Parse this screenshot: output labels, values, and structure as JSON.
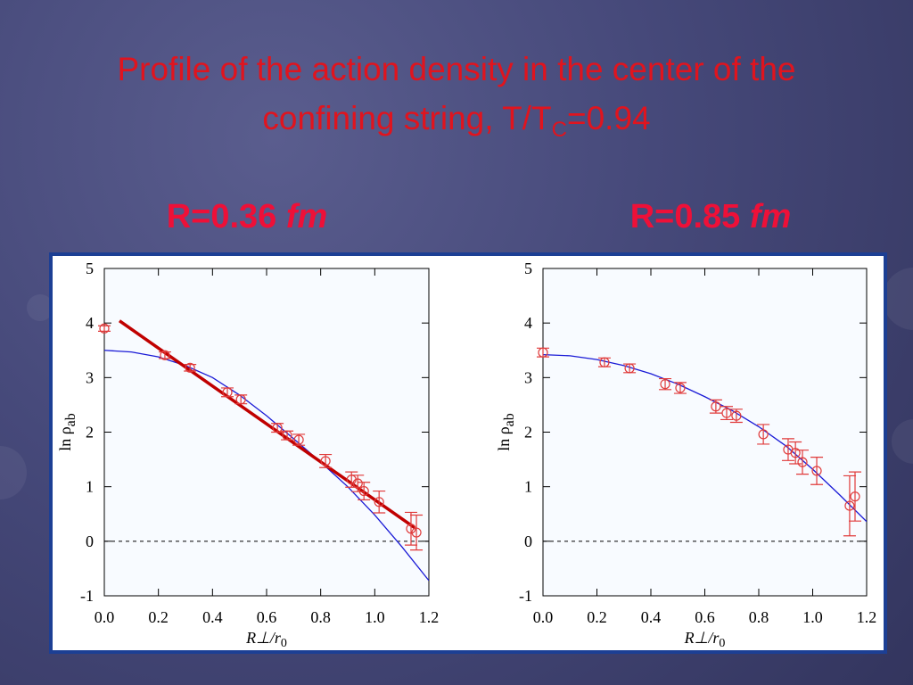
{
  "title": "Profile of the action density in the center of the confining string, T/T",
  "title_subscript": "C",
  "title_end": "=0.94",
  "chart_data": [
    {
      "type": "scatter",
      "title": "R=0.36",
      "title_unit": "fm",
      "xlabel": "R⊥/r",
      "xlabel_sub": "0",
      "ylabel": "ln ρ",
      "ylabel_sub": "ab",
      "xlim": [
        0,
        1.2
      ],
      "ylim": [
        -1,
        5
      ],
      "xticks": [
        {
          "value": 0,
          "label": "0.0"
        },
        0.2,
        0.4,
        0.6,
        0.8,
        {
          "value": 1,
          "label": "1.0"
        },
        1.2
      ],
      "yticks": [
        -1,
        0,
        1,
        2,
        3,
        4,
        5
      ],
      "series": [
        {
          "type": "scatter",
          "color": "#e03a3a",
          "x": [
            0,
            0.224,
            0.317,
            0.455,
            0.505,
            0.64,
            0.676,
            0.719,
            0.818,
            0.914,
            0.937,
            0.96,
            1.016,
            1.134,
            1.154
          ],
          "values": [
            3.9,
            3.41,
            3.18,
            2.73,
            2.6,
            2.08,
            1.94,
            1.86,
            1.47,
            1.13,
            1.06,
            0.92,
            0.72,
            0.23,
            0.16
          ],
          "errors": [
            0.05,
            0.06,
            0.06,
            0.08,
            0.08,
            0.08,
            0.08,
            0.1,
            0.12,
            0.14,
            0.15,
            0.16,
            0.2,
            0.3,
            0.32
          ]
        },
        {
          "type": "line",
          "color": "#1a1ad6",
          "width": 1.3,
          "x": [
            0,
            0.1,
            0.2,
            0.3,
            0.4,
            0.5,
            0.6,
            0.7,
            0.8,
            0.9,
            1.0,
            1.1,
            1.2
          ],
          "values": [
            3.5,
            3.47,
            3.38,
            3.22,
            3.0,
            2.68,
            2.3,
            1.88,
            1.45,
            1.0,
            0.48,
            -0.1,
            -0.72
          ]
        },
        {
          "type": "line",
          "color": "#c00000",
          "width": 3.5,
          "x": [
            0.056,
            1.147
          ],
          "values": [
            4.04,
            0.25
          ]
        }
      ]
    },
    {
      "type": "scatter",
      "title": "R=0.85",
      "title_unit": "fm",
      "xlabel": "R⊥/r",
      "xlabel_sub": "0",
      "ylabel": "ln ρ",
      "ylabel_sub": "ab",
      "xlim": [
        0,
        1.2
      ],
      "ylim": [
        -1,
        5
      ],
      "xticks": [
        {
          "value": 0,
          "label": "0.0"
        },
        0.2,
        0.4,
        0.6,
        0.8,
        {
          "value": 1,
          "label": "1.0"
        },
        1.2
      ],
      "yticks": [
        -1,
        0,
        1,
        2,
        3,
        4,
        5
      ],
      "series": [
        {
          "type": "scatter",
          "color": "#e03a3a",
          "x": [
            0,
            0.228,
            0.321,
            0.453,
            0.509,
            0.641,
            0.681,
            0.717,
            0.817,
            0.909,
            0.936,
            0.962,
            1.015,
            1.137,
            1.157
          ],
          "values": [
            3.46,
            3.28,
            3.17,
            2.88,
            2.81,
            2.47,
            2.35,
            2.3,
            1.96,
            1.68,
            1.62,
            1.45,
            1.29,
            0.65,
            0.82
          ],
          "errors": [
            0.08,
            0.08,
            0.08,
            0.1,
            0.1,
            0.12,
            0.12,
            0.12,
            0.18,
            0.2,
            0.2,
            0.22,
            0.25,
            0.55,
            0.45
          ]
        },
        {
          "type": "line",
          "color": "#1a1ad6",
          "width": 1.3,
          "x": [
            0,
            0.1,
            0.2,
            0.3,
            0.4,
            0.5,
            0.6,
            0.7,
            0.8,
            0.9,
            1.0,
            1.1,
            1.2
          ],
          "values": [
            3.42,
            3.4,
            3.33,
            3.22,
            3.07,
            2.88,
            2.65,
            2.4,
            2.1,
            1.75,
            1.32,
            0.85,
            0.36
          ]
        }
      ]
    }
  ]
}
